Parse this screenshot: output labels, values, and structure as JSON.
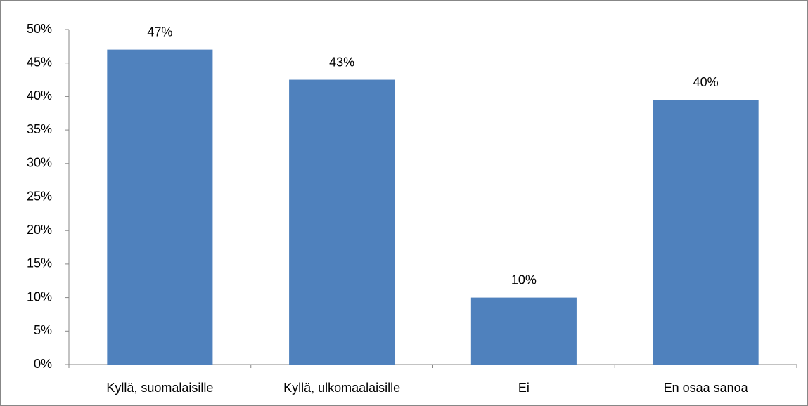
{
  "chart_data": {
    "type": "bar",
    "categories": [
      "Kyllä, suomalaisille",
      "Kyllä, ulkomaalaisille",
      "Ei",
      "En osaa sanoa"
    ],
    "values": [
      47,
      42.5,
      10,
      39.5
    ],
    "value_labels": [
      "47%",
      "43%",
      "10%",
      "40%"
    ],
    "color": "#4f81bd",
    "ylim": [
      0,
      50
    ],
    "yticks": [
      {
        "value": 0,
        "label": "0%"
      },
      {
        "value": 5,
        "label": "5%"
      },
      {
        "value": 10,
        "label": "10%"
      },
      {
        "value": 15,
        "label": "15%"
      },
      {
        "value": 20,
        "label": "20%"
      },
      {
        "value": 25,
        "label": "25%"
      },
      {
        "value": 30,
        "label": "30%"
      },
      {
        "value": 35,
        "label": "35%"
      },
      {
        "value": 40,
        "label": "40%"
      },
      {
        "value": 45,
        "label": "45%"
      },
      {
        "value": 50,
        "label": "50%"
      }
    ],
    "grid": false
  }
}
